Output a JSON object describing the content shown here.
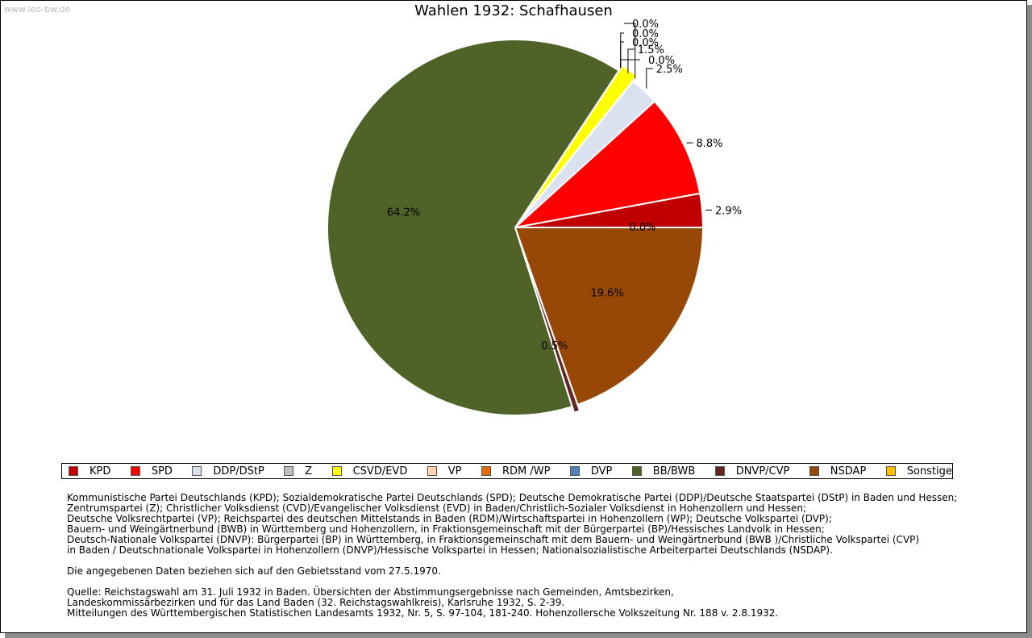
{
  "watermark": "www.leo-bw.de",
  "chart_data": {
    "type": "pie",
    "title": "Wahlen 1932: Schafhausen",
    "slices": [
      {
        "name": "KPD",
        "value": 2.9,
        "label": "2.9%",
        "color": "#c00000"
      },
      {
        "name": "SPD",
        "value": 8.8,
        "label": "8.8%",
        "color": "#ff0000"
      },
      {
        "name": "DDP/DStP",
        "value": 2.5,
        "label": "2.5%",
        "color": "#dbe2ef"
      },
      {
        "name": "Z",
        "value": 0.0,
        "label": "0.0%",
        "color": "#bfbfbf"
      },
      {
        "name": "CSVD/EVD",
        "value": 1.5,
        "label": "1.5%",
        "color": "#ffff00"
      },
      {
        "name": "VP",
        "value": 0.0,
        "label": "0.0%",
        "color": "#fcd5b5"
      },
      {
        "name": "RDM /WP",
        "value": 0.0,
        "label": "0.0%",
        "color": "#e36c09"
      },
      {
        "name": "DVP",
        "value": 0.0,
        "label": "0.0%",
        "color": "#4f81bd"
      },
      {
        "name": "BB/BWB",
        "value": 64.2,
        "label": "64.2%",
        "color": "#4f6228"
      },
      {
        "name": "DNVP/CVP",
        "value": 0.5,
        "label": "0.5%",
        "color": "#632523"
      },
      {
        "name": "NSDAP",
        "value": 19.6,
        "label": "19.6%",
        "color": "#974806"
      },
      {
        "name": "Sonstige",
        "value": 0.0,
        "label": "0.0%",
        "color": "#ffc000"
      }
    ]
  },
  "notes": {
    "parties": [
      "Kommunistische Partei Deutschlands (KPD); Sozialdemokratische Partei Deutschlands (SPD); Deutsche Demokratische Partei (DDP)/Deutsche Staatspartei (DStP) in Baden und Hessen;",
      "Zentrumspartei (Z); Christlicher Volksdienst (CVD)/Evangelischer Volksdienst (EVD) in Baden/Christlich-Sozialer Volksdienst in Hohenzollern und Hessen;",
      "Deutsche Volksrechtpartei (VP); Reichspartei des deutschen Mittelstands in Baden (RDM)/Wirtschaftspartei in Hohenzollern (WP); Deutsche Volkspartei (DVP);",
      "Bauern- und Weingärtnerbund (BWB) in Württemberg und Hohenzollern, in Fraktionsgemeinschaft mit der Bürgerpartei (BP)/Hessisches Landvolk in Hessen;",
      "Deutsch-Nationale Volkspartei (DNVP): Bürgerpartei (BP) in Württemberg, in Fraktionsgemeinschaft mit dem Bauern- und Weingärtnerbund (BWB )/Christliche Volkspartei (CVP)",
      "in Baden / Deutschnationale Volkspartei in Hohenzollern (DNVP)/Hessische Volkspartei in Hessen; Nationalsozialistische Arbeiterpartei Deutschlands (NSDAP)."
    ],
    "territory": "Die angegebenen Daten beziehen sich auf den Gebietsstand vom 27.5.1970.",
    "source": [
      "Quelle: Reichstagswahl am 31. Juli 1932 in Baden. Übersichten der Abstimmungsergebnisse nach Gemeinden, Amtsbezirken,",
      "Landeskommissärbezirken und für das Land Baden (32. Reichstagswahlkreis), Karlsruhe 1932, S. 2-39.",
      "Mitteilungen des Württembergischen Statistischen Landesamts 1932, Nr. 5, S. 97-104, 181-240. Hohenzollersche Volkszeitung Nr. 188 v. 2.8.1932."
    ]
  }
}
